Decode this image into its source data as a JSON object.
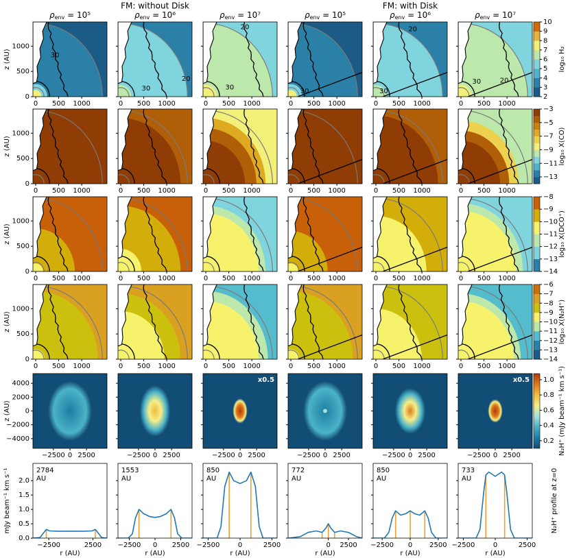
{
  "figure": {
    "groups": [
      "FM: without Disk",
      "FM: with Disk"
    ],
    "column_titles": [
      {
        "base": "ρ",
        "sub": "env",
        "rest": " = 10⁵"
      },
      {
        "base": "ρ",
        "sub": "env",
        "rest": " = 10⁶"
      },
      {
        "base": "ρ",
        "sub": "env",
        "rest": " = 10⁷"
      },
      {
        "base": "ρ",
        "sub": "env",
        "rest": " = 10⁵"
      },
      {
        "base": "ρ",
        "sub": "env",
        "rest": " = 10⁶"
      },
      {
        "base": "ρ",
        "sub": "env",
        "rest": " = 10⁷"
      }
    ]
  },
  "chart_data": [
    {
      "type": "map",
      "xlim": [
        -60,
        1550
      ],
      "xticks": [
        0,
        500,
        1000
      ],
      "ylim": [
        0,
        1480
      ],
      "yticks": [
        0,
        500,
        1000
      ],
      "ylabel": "z (AU)",
      "contour_labels": [
        [
          "30"
        ],
        [
          "30",
          "20"
        ],
        [
          "20",
          "30"
        ],
        [
          "30"
        ],
        [
          "20",
          "30"
        ],
        [
          "30",
          "20"
        ]
      ],
      "colorbar": {
        "label": "log₁₀ H₂",
        "lim": [
          2,
          10
        ],
        "ticks": [
          2,
          3,
          4,
          5,
          6,
          7,
          8,
          9,
          10
        ],
        "colors": [
          "#1b5b86",
          "#2a80a6",
          "#4fb3c9",
          "#80d4de",
          "#bde8ab",
          "#f3f07a",
          "#e6b23c",
          "#cf6c10"
        ]
      }
    },
    {
      "type": "map",
      "xlim": [
        -60,
        1550
      ],
      "xticks": [
        0,
        500,
        1000
      ],
      "ylim": [
        0,
        1480
      ],
      "yticks": [
        0,
        500,
        1000
      ],
      "ylabel": "z (AU)",
      "colorbar": {
        "label": "log₁₀ X(CO)",
        "lim": [
          -14,
          -3
        ],
        "ticks": [
          {
            "value": -3,
            "label": "−3"
          },
          {
            "value": -5,
            "label": "−5"
          },
          {
            "value": -7,
            "label": "−7"
          },
          {
            "value": -9,
            "label": "−9"
          },
          {
            "value": -11,
            "label": "−11"
          },
          {
            "value": -13,
            "label": "−13"
          }
        ],
        "colors": [
          "#1b5b86",
          "#2a80a6",
          "#4fb3c9",
          "#80d4de",
          "#bde8ab",
          "#f3f07a",
          "#ecd24e",
          "#ddaa22",
          "#c98210",
          "#b05f08",
          "#8f3d04"
        ]
      }
    },
    {
      "type": "map",
      "xlim": [
        -60,
        1550
      ],
      "xticks": [
        0,
        500,
        1000
      ],
      "ylim": [
        0,
        1480
      ],
      "yticks": [
        0,
        500,
        1000
      ],
      "ylabel": "z (AU)",
      "colorbar": {
        "label": "log₁₀ X(DCO⁺)",
        "lim": [
          -14,
          -8
        ],
        "ticks": [
          {
            "value": -8,
            "label": "−8"
          },
          {
            "value": -9,
            "label": "−9"
          },
          {
            "value": -10,
            "label": "−10"
          },
          {
            "value": -11,
            "label": "−11"
          },
          {
            "value": -12,
            "label": "−12"
          },
          {
            "value": -13,
            "label": "−13"
          },
          {
            "value": -14,
            "label": "−14"
          }
        ],
        "colors": [
          "#2a80a6",
          "#80d4de",
          "#bde8ab",
          "#f6f26c",
          "#d3ad0a",
          "#c8600a"
        ]
      }
    },
    {
      "type": "map",
      "xlim": [
        -60,
        1550
      ],
      "xticks": [
        0,
        500,
        1000
      ],
      "ylim": [
        0,
        1480
      ],
      "yticks": [
        0,
        500,
        1000
      ],
      "ylabel": "z (AU)",
      "colorbar": {
        "label": "log₁₀ X(N₂H⁺)",
        "lim": [
          -14,
          -6
        ],
        "ticks": [
          {
            "value": -6,
            "label": "−6"
          },
          {
            "value": -7,
            "label": "−7"
          },
          {
            "value": -8,
            "label": "−8"
          },
          {
            "value": -9,
            "label": "−9"
          },
          {
            "value": -10,
            "label": "−10"
          },
          {
            "value": -11,
            "label": "−11"
          },
          {
            "value": -12,
            "label": "−12"
          },
          {
            "value": -13,
            "label": "−13"
          },
          {
            "value": -14,
            "label": "−14"
          }
        ],
        "colors": [
          "#1b5b86",
          "#2a80a6",
          "#55bccd",
          "#bde8ab",
          "#f6f26c",
          "#ccc00e",
          "#d9a021",
          "#c8700a"
        ]
      }
    },
    {
      "type": "image",
      "xlim": [
        -5600,
        5600
      ],
      "xticks": [
        {
          "value": -2500,
          "label": "−2500"
        },
        0,
        2500
      ],
      "ylim": [
        -5400,
        5400
      ],
      "yticks": [
        {
          "value": -4000,
          "label": "−4000"
        },
        {
          "value": -2000,
          "label": "−2000"
        },
        0,
        2000,
        4000
      ],
      "ylabel": "z (AU)",
      "annotations": [
        null,
        null,
        "x0.5",
        null,
        null,
        "x0.5"
      ],
      "colorbar": {
        "label": "N₂H⁺ (mJy beam⁻¹ km s⁻¹)",
        "lim": [
          0.1,
          1.08
        ],
        "ticks": [
          0.2,
          0.4,
          0.6,
          0.8,
          {
            "value": 1,
            "label": "1.0"
          }
        ],
        "colors": [
          "#124d75",
          "#1f7ea3",
          "#4bb3c8",
          "#a9e0dc",
          "#f5ee88",
          "#f1bd3e",
          "#dc7a1c",
          "#b23a0c"
        ]
      }
    },
    {
      "type": "line",
      "ylim": [
        0,
        2.6
      ],
      "yticks": [
        {
          "value": 0,
          "label": "0.0"
        },
        0.5,
        {
          "value": 1,
          "label": "1.0"
        },
        1.5,
        {
          "value": 2,
          "label": "2.0"
        }
      ],
      "ylabel": "mJy beam⁻¹ km s⁻¹",
      "xlabel": "r (AU)",
      "side_label": "N₂H⁺ profile at z=0",
      "color": "#1f77b4",
      "peak_color": "#f0a030",
      "panels": [
        {
          "xlim": [
            -4300,
            4100
          ],
          "xticks": [
            {
              "value": -2500,
              "label": "−2500"
            },
            2500
          ],
          "annotation": [
            "2784",
            "AU"
          ],
          "x": [
            -4300,
            -3500,
            -3100,
            -2784,
            -2400,
            -1500,
            0,
            1500,
            2400,
            2784,
            3100,
            3500,
            4100
          ],
          "values": [
            0,
            0.02,
            0.18,
            0.3,
            0.25,
            0.24,
            0.24,
            0.24,
            0.25,
            0.3,
            0.18,
            0.02,
            0
          ],
          "peaks": {
            "x": [
              -2784,
              2784
            ],
            "values": [
              0.3,
              0.3
            ]
          }
        },
        {
          "xlim": [
            -3600,
            3600
          ],
          "xticks": [
            {
              "value": -2500,
              "label": "−2500"
            },
            0,
            2500
          ],
          "annotation": [
            "1553",
            " AU"
          ],
          "x": [
            -3600,
            -2600,
            -2200,
            -1900,
            -1553,
            -1100,
            -500,
            0,
            500,
            1100,
            1553,
            1900,
            2200,
            2600,
            3600
          ],
          "values": [
            0,
            0,
            0.15,
            0.7,
            1.0,
            0.85,
            0.75,
            0.72,
            0.75,
            0.85,
            1.0,
            0.7,
            0.15,
            0,
            0
          ],
          "peaks": {
            "x": [
              -1553,
              1553
            ],
            "values": [
              1.0,
              1.0
            ]
          }
        },
        {
          "xlim": [
            -2900,
            2900
          ],
          "xticks": [
            {
              "value": -2500,
              "label": "−2500"
            },
            0,
            2500
          ],
          "annotation": [
            "850",
            "AU"
          ],
          "x": [
            -2900,
            -1800,
            -1500,
            -1200,
            -850,
            -500,
            0,
            500,
            850,
            1200,
            1500,
            1800,
            2900
          ],
          "values": [
            0,
            0,
            0.4,
            1.8,
            2.3,
            2.0,
            1.9,
            2.0,
            2.3,
            1.8,
            0.4,
            0,
            0
          ],
          "peaks": {
            "x": [
              -850,
              850
            ],
            "values": [
              2.3,
              2.3
            ]
          }
        },
        {
          "xlim": [
            -5000,
            4200
          ],
          "xticks": [
            0,
            2500
          ],
          "annotation": [
            "772",
            "AU"
          ],
          "x": [
            -5000,
            -3500,
            -2500,
            -1500,
            -772,
            -300,
            0,
            300,
            772,
            1500,
            2500,
            3500,
            4200
          ],
          "values": [
            0,
            0.05,
            0.2,
            0.25,
            0.2,
            0.35,
            0.5,
            0.35,
            0.2,
            0.25,
            0.2,
            0.05,
            0
          ],
          "peaks": {
            "x": [
              -772,
              0,
              772
            ],
            "values": [
              0.2,
              0.5,
              0.2
            ]
          }
        },
        {
          "xlim": [
            -3300,
            3300
          ],
          "xticks": [
            {
              "value": -2500,
              "label": "−2500"
            },
            0,
            2500
          ],
          "annotation": [
            "850",
            "AU"
          ],
          "x": [
            -3300,
            -2300,
            -1900,
            -1600,
            -1300,
            -850,
            -400,
            0,
            400,
            850,
            1300,
            1600,
            1900,
            2300,
            3300
          ],
          "values": [
            0,
            0,
            0.2,
            0.7,
            0.95,
            0.8,
            0.85,
            0.95,
            0.85,
            0.8,
            0.95,
            0.7,
            0.2,
            0,
            0
          ],
          "peaks": {
            "x": [
              -1300,
              0,
              1300
            ],
            "values": [
              0.95,
              0.95,
              0.95
            ]
          }
        },
        {
          "xlim": [
            -2900,
            2900
          ],
          "xticks": [
            {
              "value": -2500,
              "label": "−2500"
            },
            0,
            2500
          ],
          "annotation": [
            "733",
            "AU"
          ],
          "x": [
            -2900,
            -1500,
            -1200,
            -900,
            -733,
            -500,
            0,
            500,
            733,
            900,
            1200,
            1500,
            2900
          ],
          "values": [
            0,
            0,
            0.3,
            1.6,
            2.2,
            2.3,
            2.15,
            2.3,
            2.2,
            1.6,
            0.3,
            0,
            0
          ],
          "peaks": {
            "x": [
              -733,
              733
            ],
            "values": [
              2.2,
              2.2
            ]
          }
        }
      ]
    }
  ]
}
